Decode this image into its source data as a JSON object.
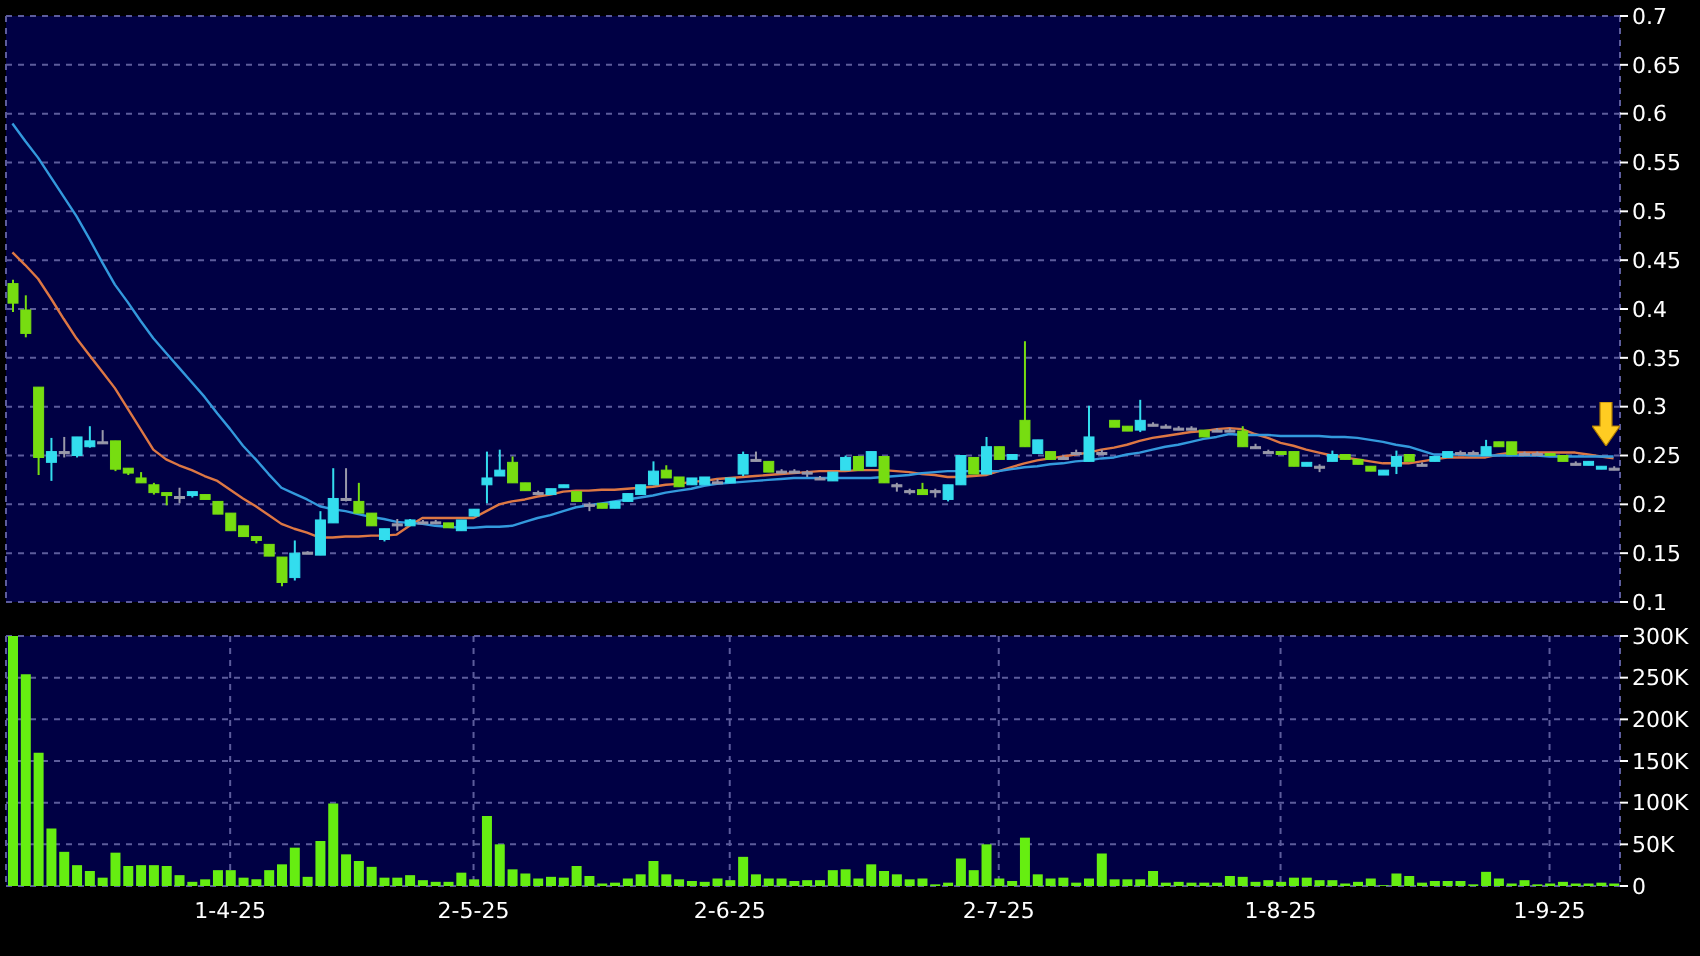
{
  "chart_data": [
    {
      "type": "candlestick",
      "tick_labels": "y",
      "grid": true,
      "categories": [
        null,
        null,
        null,
        null,
        null,
        null,
        null,
        null,
        null,
        null,
        null,
        null,
        null,
        null,
        null,
        null,
        null,
        null,
        null,
        null,
        null,
        null,
        null,
        null,
        null,
        null,
        null,
        null,
        null,
        null,
        null,
        null,
        null,
        null,
        null,
        null,
        null,
        null,
        null,
        null,
        null,
        null,
        null,
        null,
        null,
        null,
        null,
        null,
        null,
        null,
        null,
        null,
        null,
        null,
        null,
        null,
        null,
        null,
        null,
        null,
        null,
        null,
        null,
        null,
        null,
        null,
        null,
        null,
        null,
        null,
        null,
        null,
        null,
        null,
        null,
        null,
        null,
        null,
        null,
        null,
        null,
        null,
        null,
        null,
        null,
        null,
        null,
        null,
        null,
        null,
        null,
        null,
        null,
        null,
        null,
        null,
        null,
        null,
        null,
        null,
        null,
        null,
        null,
        null,
        null,
        null,
        null,
        null,
        null,
        null,
        null,
        null,
        null,
        null,
        null,
        null,
        null,
        null,
        null,
        null,
        null,
        null,
        null,
        null,
        null,
        null
      ],
      "ylim": [
        0.1,
        0.7
      ],
      "yticks": [
        0.1,
        0.15,
        0.2,
        0.25,
        0.3,
        0.35,
        0.4,
        0.45,
        0.5,
        0.55,
        0.6,
        0.65,
        0.7
      ],
      "ohlc": [
        [
          0.426,
          0.43,
          0.397,
          0.406
        ],
        [
          0.399,
          0.414,
          0.371,
          0.375
        ],
        [
          0.32,
          0.32,
          0.23,
          0.248
        ],
        [
          0.243,
          0.268,
          0.224,
          0.254
        ],
        [
          0.254,
          0.269,
          0.248,
          0.254
        ],
        [
          0.25,
          0.269,
          0.248,
          0.269
        ],
        [
          0.259,
          0.28,
          0.258,
          0.265
        ],
        [
          0.264,
          0.276,
          0.262,
          0.264
        ],
        [
          0.265,
          0.265,
          0.234,
          0.236
        ],
        [
          0.237,
          0.237,
          0.23,
          0.232
        ],
        [
          0.227,
          0.233,
          0.222,
          0.222
        ],
        [
          0.22,
          0.222,
          0.21,
          0.212
        ],
        [
          0.212,
          0.212,
          0.199,
          0.209
        ],
        [
          0.208,
          0.217,
          0.201,
          0.208
        ],
        [
          0.209,
          0.213,
          0.207,
          0.213
        ],
        [
          0.21,
          0.21,
          0.205,
          0.205
        ],
        [
          0.203,
          0.203,
          0.19,
          0.19
        ],
        [
          0.191,
          0.191,
          0.173,
          0.173
        ],
        [
          0.178,
          0.178,
          0.167,
          0.167
        ],
        [
          0.167,
          0.167,
          0.16,
          0.163
        ],
        [
          0.159,
          0.159,
          0.147,
          0.147
        ],
        [
          0.146,
          0.146,
          0.116,
          0.12
        ],
        [
          0.125,
          0.163,
          0.122,
          0.15
        ],
        [
          0.151,
          0.152,
          0.151,
          0.151
        ],
        [
          0.148,
          0.193,
          0.148,
          0.184
        ],
        [
          0.181,
          0.237,
          0.181,
          0.206
        ],
        [
          0.206,
          0.237,
          0.203,
          0.206
        ],
        [
          0.203,
          0.222,
          0.191,
          0.191
        ],
        [
          0.191,
          0.191,
          0.178,
          0.178
        ],
        [
          0.164,
          0.175,
          0.162,
          0.175
        ],
        [
          0.18,
          0.185,
          0.173,
          0.18
        ],
        [
          0.178,
          0.185,
          0.178,
          0.184
        ],
        [
          0.182,
          0.184,
          0.18,
          0.182
        ],
        [
          0.182,
          0.184,
          0.18,
          0.182
        ],
        [
          0.181,
          0.181,
          0.176,
          0.176
        ],
        [
          0.173,
          0.184,
          0.173,
          0.184
        ],
        [
          0.188,
          0.195,
          0.188,
          0.195
        ],
        [
          0.22,
          0.254,
          0.201,
          0.227
        ],
        [
          0.229,
          0.256,
          0.229,
          0.235
        ],
        [
          0.243,
          0.249,
          0.222,
          0.222
        ],
        [
          0.222,
          0.222,
          0.214,
          0.214
        ],
        [
          0.212,
          0.214,
          0.21,
          0.212
        ],
        [
          0.21,
          0.216,
          0.21,
          0.216
        ],
        [
          0.217,
          0.22,
          0.217,
          0.22
        ],
        [
          0.213,
          0.213,
          0.203,
          0.203
        ],
        [
          0.2,
          0.202,
          0.193,
          0.2
        ],
        [
          0.201,
          0.201,
          0.196,
          0.196
        ],
        [
          0.196,
          0.203,
          0.196,
          0.203
        ],
        [
          0.203,
          0.211,
          0.203,
          0.211
        ],
        [
          0.21,
          0.22,
          0.21,
          0.22
        ],
        [
          0.22,
          0.244,
          0.22,
          0.234
        ],
        [
          0.235,
          0.24,
          0.227,
          0.227
        ],
        [
          0.228,
          0.228,
          0.218,
          0.218
        ],
        [
          0.22,
          0.227,
          0.22,
          0.227
        ],
        [
          0.22,
          0.228,
          0.22,
          0.228
        ],
        [
          0.223,
          0.226,
          0.221,
          0.223
        ],
        [
          0.222,
          0.227,
          0.222,
          0.227
        ],
        [
          0.231,
          0.254,
          0.229,
          0.251
        ],
        [
          0.246,
          0.254,
          0.244,
          0.246
        ],
        [
          0.244,
          0.244,
          0.233,
          0.233
        ],
        [
          0.234,
          0.236,
          0.232,
          0.234
        ],
        [
          0.234,
          0.236,
          0.232,
          0.234
        ],
        [
          0.233,
          0.235,
          0.228,
          0.233
        ],
        [
          0.227,
          0.229,
          0.225,
          0.227
        ],
        [
          0.224,
          0.233,
          0.224,
          0.233
        ],
        [
          0.235,
          0.25,
          0.235,
          0.248
        ],
        [
          0.249,
          0.249,
          0.235,
          0.235
        ],
        [
          0.239,
          0.254,
          0.239,
          0.254
        ],
        [
          0.249,
          0.249,
          0.222,
          0.222
        ],
        [
          0.22,
          0.222,
          0.213,
          0.22
        ],
        [
          0.214,
          0.216,
          0.21,
          0.214
        ],
        [
          0.215,
          0.222,
          0.21,
          0.21
        ],
        [
          0.214,
          0.216,
          0.207,
          0.214
        ],
        [
          0.205,
          0.22,
          0.203,
          0.22
        ],
        [
          0.22,
          0.25,
          0.22,
          0.25
        ],
        [
          0.248,
          0.248,
          0.231,
          0.231
        ],
        [
          0.231,
          0.269,
          0.231,
          0.259
        ],
        [
          0.259,
          0.259,
          0.246,
          0.246
        ],
        [
          0.246,
          0.251,
          0.246,
          0.251
        ],
        [
          0.286,
          0.367,
          0.259,
          0.259
        ],
        [
          0.252,
          0.266,
          0.252,
          0.266
        ],
        [
          0.254,
          0.254,
          0.246,
          0.246
        ],
        [
          0.248,
          0.25,
          0.246,
          0.248
        ],
        [
          0.253,
          0.256,
          0.251,
          0.253
        ],
        [
          0.244,
          0.301,
          0.244,
          0.269
        ],
        [
          0.253,
          0.256,
          0.251,
          0.253
        ],
        [
          0.286,
          0.286,
          0.279,
          0.279
        ],
        [
          0.28,
          0.28,
          0.275,
          0.275
        ],
        [
          0.276,
          0.307,
          0.274,
          0.286
        ],
        [
          0.282,
          0.284,
          0.28,
          0.282
        ],
        [
          0.28,
          0.282,
          0.278,
          0.28
        ],
        [
          0.278,
          0.28,
          0.276,
          0.278
        ],
        [
          0.278,
          0.28,
          0.276,
          0.278
        ],
        [
          0.276,
          0.276,
          0.269,
          0.269
        ],
        [
          0.276,
          0.278,
          0.274,
          0.276
        ],
        [
          0.276,
          0.278,
          0.274,
          0.276
        ],
        [
          0.275,
          0.28,
          0.259,
          0.259
        ],
        [
          0.259,
          0.262,
          0.257,
          0.259
        ],
        [
          0.254,
          0.256,
          0.252,
          0.254
        ],
        [
          0.254,
          0.254,
          0.251,
          0.251
        ],
        [
          0.254,
          0.254,
          0.239,
          0.239
        ],
        [
          0.239,
          0.243,
          0.239,
          0.243
        ],
        [
          0.239,
          0.241,
          0.233,
          0.239
        ],
        [
          0.244,
          0.255,
          0.244,
          0.251
        ],
        [
          0.251,
          0.251,
          0.246,
          0.246
        ],
        [
          0.246,
          0.246,
          0.241,
          0.241
        ],
        [
          0.239,
          0.239,
          0.234,
          0.234
        ],
        [
          0.23,
          0.235,
          0.23,
          0.235
        ],
        [
          0.239,
          0.255,
          0.231,
          0.249
        ],
        [
          0.251,
          0.251,
          0.244,
          0.244
        ],
        [
          0.241,
          0.243,
          0.239,
          0.241
        ],
        [
          0.244,
          0.249,
          0.244,
          0.249
        ],
        [
          0.248,
          0.254,
          0.248,
          0.254
        ],
        [
          0.253,
          0.255,
          0.251,
          0.253
        ],
        [
          0.253,
          0.255,
          0.251,
          0.253
        ],
        [
          0.25,
          0.266,
          0.25,
          0.259
        ],
        [
          0.264,
          0.264,
          0.259,
          0.259
        ],
        [
          0.264,
          0.264,
          0.251,
          0.251
        ],
        [
          0.252,
          0.254,
          0.25,
          0.252
        ],
        [
          0.252,
          0.254,
          0.25,
          0.252
        ],
        [
          0.252,
          0.252,
          0.25,
          0.25
        ],
        [
          0.25,
          0.25,
          0.244,
          0.244
        ],
        [
          0.242,
          0.244,
          0.24,
          0.242
        ],
        [
          0.24,
          0.244,
          0.24,
          0.244
        ],
        [
          0.236,
          0.239,
          0.236,
          0.239
        ],
        [
          0.237,
          0.239,
          0.235,
          0.237
        ]
      ],
      "colors": [
        "#77dd11",
        "#77dd11",
        "#77dd11",
        "#33ddee",
        "#9999aa",
        "#33ddee",
        "#33ddee",
        "#9999aa",
        "#77dd11",
        "#77dd11",
        "#77dd11",
        "#77dd11",
        "#77dd11",
        "#9999aa",
        "#33ddee",
        "#77dd11",
        "#77dd11",
        "#77dd11",
        "#77dd11",
        "#77dd11",
        "#77dd11",
        "#77dd11",
        "#33ddee",
        "#9999aa",
        "#33ddee",
        "#33ddee",
        "#9999aa",
        "#77dd11",
        "#77dd11",
        "#33ddee",
        "#9999aa",
        "#33ddee",
        "#9999aa",
        "#9999aa",
        "#77dd11",
        "#33ddee",
        "#33ddee",
        "#33ddee",
        "#33ddee",
        "#77dd11",
        "#77dd11",
        "#9999aa",
        "#33ddee",
        "#33ddee",
        "#77dd11",
        "#9999aa",
        "#77dd11",
        "#33ddee",
        "#33ddee",
        "#33ddee",
        "#33ddee",
        "#77dd11",
        "#77dd11",
        "#33ddee",
        "#33ddee",
        "#9999aa",
        "#33ddee",
        "#33ddee",
        "#9999aa",
        "#77dd11",
        "#9999aa",
        "#9999aa",
        "#9999aa",
        "#9999aa",
        "#33ddee",
        "#33ddee",
        "#77dd11",
        "#33ddee",
        "#77dd11",
        "#9999aa",
        "#9999aa",
        "#77dd11",
        "#9999aa",
        "#33ddee",
        "#33ddee",
        "#77dd11",
        "#33ddee",
        "#77dd11",
        "#33ddee",
        "#77dd11",
        "#33ddee",
        "#77dd11",
        "#9999aa",
        "#9999aa",
        "#33ddee",
        "#9999aa",
        "#77dd11",
        "#77dd11",
        "#33ddee",
        "#9999aa",
        "#9999aa",
        "#9999aa",
        "#9999aa",
        "#77dd11",
        "#9999aa",
        "#9999aa",
        "#77dd11",
        "#9999aa",
        "#9999aa",
        "#77dd11",
        "#77dd11",
        "#33ddee",
        "#9999aa",
        "#33ddee",
        "#77dd11",
        "#77dd11",
        "#77dd11",
        "#33ddee",
        "#33ddee",
        "#77dd11",
        "#9999aa",
        "#33ddee",
        "#33ddee",
        "#9999aa",
        "#9999aa",
        "#33ddee",
        "#77dd11",
        "#77dd11",
        "#9999aa",
        "#9999aa",
        "#77dd11",
        "#77dd11",
        "#9999aa",
        "#33ddee",
        "#33ddee",
        "#9999aa"
      ],
      "series": [
        {
          "type": "line",
          "color": "#dd7744",
          "values": [
            0.458,
            0.445,
            0.431,
            0.411,
            0.39,
            0.37,
            0.353,
            0.336,
            0.319,
            0.298,
            0.277,
            0.256,
            0.246,
            0.24,
            0.235,
            0.229,
            0.224,
            0.215,
            0.206,
            0.198,
            0.189,
            0.18,
            0.175,
            0.171,
            0.166,
            0.166,
            0.167,
            0.167,
            0.168,
            0.168,
            0.169,
            0.178,
            0.186,
            0.186,
            0.186,
            0.186,
            0.186,
            0.193,
            0.2,
            0.203,
            0.205,
            0.208,
            0.21,
            0.213,
            0.214,
            0.214,
            0.215,
            0.215,
            0.216,
            0.217,
            0.218,
            0.22,
            0.221,
            0.223,
            0.224,
            0.226,
            0.227,
            0.228,
            0.229,
            0.23,
            0.231,
            0.232,
            0.233,
            0.234,
            0.234,
            0.234,
            0.235,
            0.235,
            0.235,
            0.234,
            0.233,
            0.231,
            0.23,
            0.228,
            0.228,
            0.229,
            0.23,
            0.234,
            0.238,
            0.242,
            0.245,
            0.247,
            0.249,
            0.251,
            0.253,
            0.256,
            0.258,
            0.261,
            0.265,
            0.268,
            0.27,
            0.272,
            0.274,
            0.275,
            0.277,
            0.278,
            0.277,
            0.272,
            0.268,
            0.263,
            0.26,
            0.256,
            0.253,
            0.25,
            0.248,
            0.246,
            0.244,
            0.242,
            0.242,
            0.242,
            0.244,
            0.246,
            0.248,
            0.248,
            0.248,
            0.248,
            0.251,
            0.253,
            0.253,
            0.253,
            0.253,
            0.253,
            0.253,
            0.251,
            0.249,
            0.247
          ]
        },
        {
          "type": "line",
          "color": "#3399dd",
          "values": [
            0.59,
            0.572,
            0.555,
            0.535,
            0.515,
            0.495,
            0.472,
            0.448,
            0.425,
            0.407,
            0.388,
            0.37,
            0.355,
            0.34,
            0.325,
            0.31,
            0.293,
            0.277,
            0.26,
            0.246,
            0.231,
            0.217,
            0.211,
            0.205,
            0.198,
            0.195,
            0.193,
            0.19,
            0.187,
            0.185,
            0.182,
            0.181,
            0.18,
            0.178,
            0.177,
            0.176,
            0.176,
            0.177,
            0.177,
            0.178,
            0.182,
            0.186,
            0.189,
            0.193,
            0.197,
            0.199,
            0.201,
            0.203,
            0.205,
            0.207,
            0.209,
            0.212,
            0.214,
            0.216,
            0.219,
            0.221,
            0.222,
            0.223,
            0.224,
            0.225,
            0.226,
            0.227,
            0.227,
            0.227,
            0.227,
            0.227,
            0.227,
            0.227,
            0.228,
            0.229,
            0.23,
            0.232,
            0.233,
            0.234,
            0.234,
            0.234,
            0.234,
            0.234,
            0.236,
            0.238,
            0.239,
            0.241,
            0.242,
            0.244,
            0.245,
            0.247,
            0.248,
            0.251,
            0.253,
            0.256,
            0.259,
            0.261,
            0.264,
            0.267,
            0.269,
            0.272,
            0.271,
            0.271,
            0.271,
            0.27,
            0.27,
            0.27,
            0.27,
            0.269,
            0.269,
            0.268,
            0.266,
            0.264,
            0.261,
            0.259,
            0.255,
            0.251,
            0.251,
            0.251,
            0.25,
            0.25,
            0.25,
            0.25,
            0.25,
            0.25,
            0.249,
            0.249,
            0.249,
            0.249,
            0.249,
            0.249
          ]
        }
      ]
    },
    {
      "type": "bar",
      "grid": true,
      "color": "#66ee11",
      "categories": [
        null,
        null,
        null,
        null,
        null,
        null,
        null,
        null,
        null,
        null,
        null,
        null,
        null,
        null,
        null,
        null,
        null,
        "1-4-25",
        null,
        null,
        null,
        null,
        null,
        null,
        null,
        null,
        null,
        null,
        null,
        null,
        null,
        null,
        null,
        null,
        null,
        null,
        "2-5-25",
        null,
        null,
        null,
        null,
        null,
        null,
        null,
        null,
        null,
        null,
        null,
        null,
        null,
        null,
        null,
        null,
        null,
        null,
        null,
        "2-6-25",
        null,
        null,
        null,
        null,
        null,
        null,
        null,
        null,
        null,
        null,
        null,
        null,
        null,
        null,
        null,
        null,
        null,
        null,
        null,
        null,
        "2-7-25",
        null,
        null,
        null,
        null,
        null,
        null,
        null,
        null,
        null,
        null,
        null,
        null,
        null,
        null,
        null,
        null,
        null,
        null,
        null,
        null,
        null,
        "1-8-25",
        null,
        null,
        null,
        null,
        null,
        null,
        null,
        null,
        null,
        null,
        null,
        null,
        null,
        null,
        null,
        null,
        null,
        null,
        null,
        null,
        "1-9-25",
        null,
        null,
        null,
        null,
        null
      ],
      "ylim": [
        0,
        300000
      ],
      "yticks": [
        0,
        {
          "value": 50000,
          "label": "50K"
        },
        {
          "value": 100000,
          "label": "100K"
        },
        {
          "value": 150000,
          "label": "150K"
        },
        {
          "value": 200000,
          "label": "200K"
        },
        {
          "value": 250000,
          "label": "250K"
        },
        {
          "value": 300000,
          "label": "300K"
        }
      ],
      "values": [
        300000,
        254000,
        160000,
        69000,
        41000,
        25000,
        18000,
        10000,
        40000,
        24000,
        25000,
        25000,
        24000,
        13000,
        5000,
        8000,
        19000,
        19000,
        10000,
        8000,
        19000,
        26000,
        46000,
        11000,
        54000,
        99000,
        38000,
        30000,
        23000,
        10000,
        10000,
        13000,
        7000,
        5000,
        5000,
        16000,
        8000,
        84000,
        50000,
        20000,
        15000,
        9000,
        11000,
        10000,
        24000,
        12000,
        3000,
        4000,
        9000,
        14000,
        30000,
        14000,
        8000,
        6000,
        5000,
        9000,
        7000,
        35000,
        14000,
        9000,
        9000,
        6000,
        7000,
        7000,
        19000,
        20000,
        9000,
        26000,
        18000,
        14000,
        8000,
        9000,
        2000,
        4000,
        33000,
        19000,
        50000,
        9000,
        6000,
        58000,
        14000,
        9000,
        10000,
        4000,
        9000,
        39000,
        8000,
        8000,
        8000,
        18000,
        4000,
        5000,
        4000,
        4000,
        4000,
        12000,
        11000,
        5000,
        7000,
        5000,
        10000,
        10000,
        7000,
        7000,
        3000,
        5000,
        9000,
        1000,
        15000,
        12000,
        4000,
        6000,
        6000,
        6000,
        2000,
        17000,
        9000,
        3000,
        7000,
        2000,
        3000,
        5000,
        3000,
        3000,
        4000,
        3000
      ]
    }
  ]
}
